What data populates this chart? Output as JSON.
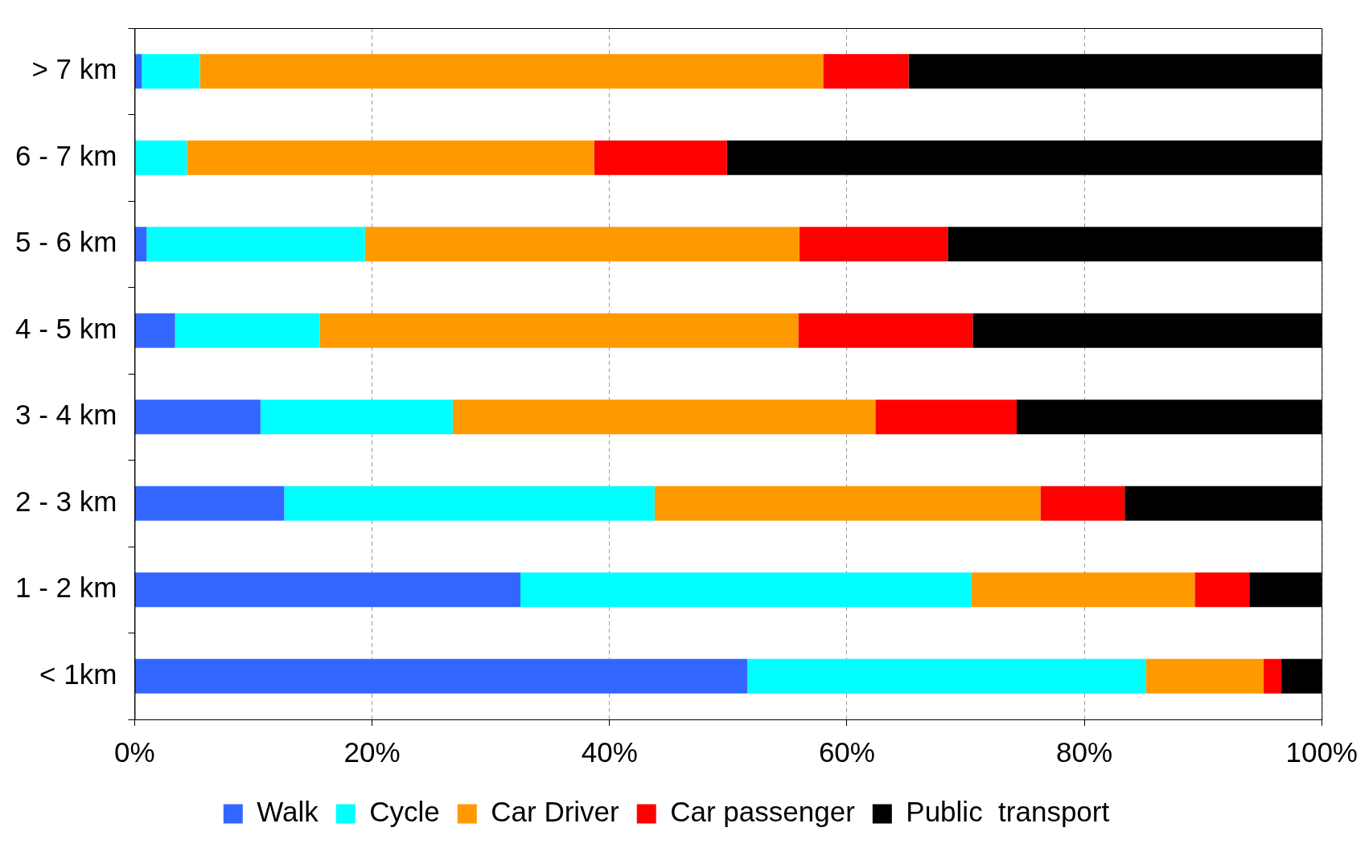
{
  "chart_data": {
    "type": "bar",
    "orientation": "horizontal",
    "stacked": true,
    "categories": [
      "> 7 km",
      "6 - 7 km",
      "5 - 6 km",
      "4 - 5 km",
      "3 - 4 km",
      "2 - 3 km",
      "1 - 2 km",
      "< 1km"
    ],
    "series": [
      {
        "name": "Walk",
        "color": "#3366ff",
        "values": [
          0.6,
          0,
          1.0,
          3.4,
          10.6,
          12.6,
          32.5,
          51.6
        ]
      },
      {
        "name": "Cycle",
        "color": "#00ffff",
        "values": [
          4.9,
          4.4,
          18.4,
          12.2,
          16.2,
          31.2,
          38.0,
          33.6
        ]
      },
      {
        "name": "Car Driver",
        "color": "#ff9900",
        "values": [
          52.5,
          34.3,
          36.6,
          40.3,
          35.6,
          32.5,
          18.8,
          9.9
        ]
      },
      {
        "name": "Car passenger",
        "color": "#ff0000",
        "values": [
          7.2,
          11.2,
          12.5,
          14.7,
          11.9,
          7.1,
          4.6,
          1.5
        ]
      },
      {
        "name": "Public  transport",
        "color": "#000000",
        "values": [
          34.8,
          50.1,
          31.5,
          29.4,
          25.7,
          16.6,
          6.1,
          3.4
        ]
      }
    ],
    "xlim": [
      0,
      100
    ],
    "xticks": [
      {
        "value": 0,
        "label": "0%"
      },
      {
        "value": 20,
        "label": "20%"
      },
      {
        "value": 40,
        "label": "40%"
      },
      {
        "value": 60,
        "label": "60%"
      },
      {
        "value": 80,
        "label": "80%"
      },
      {
        "value": 100,
        "label": "100%"
      }
    ],
    "grid": "x",
    "legend": "bottom"
  }
}
